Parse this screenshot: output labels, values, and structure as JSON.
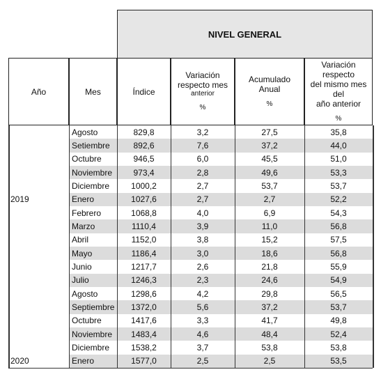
{
  "table": {
    "title": "NIVEL GENERAL",
    "headers": [
      {
        "lines": [
          "Año"
        ]
      },
      {
        "lines": [
          "Mes"
        ]
      },
      {
        "lines": [
          "Índice"
        ]
      },
      {
        "lines": [
          "Variación",
          "respecto mes"
        ],
        "sub": "anterior",
        "unit": "%"
      },
      {
        "lines": [
          "Acumulado",
          "Anual"
        ],
        "unit": "%"
      },
      {
        "lines": [
          "Variación respecto",
          "del mismo mes del",
          "año anterior"
        ],
        "unit": "%"
      }
    ],
    "rows": [
      [
        null,
        "Agosto",
        "829,8",
        "3,2",
        "27,5",
        "35,8"
      ],
      [
        null,
        "Setiembre",
        "892,6",
        "7,6",
        "37,2",
        "44,0"
      ],
      [
        null,
        "Octubre",
        "946,5",
        "6,0",
        "45,5",
        "51,0"
      ],
      [
        null,
        "Noviembre",
        "973,4",
        "2,8",
        "49,6",
        "53,3"
      ],
      [
        null,
        "Diciembre",
        "1000,2",
        "2,7",
        "53,7",
        "53,7"
      ],
      [
        "2019",
        "Enero",
        "1027,6",
        "2,7",
        "2,7",
        "52,2"
      ],
      [
        null,
        "Febrero",
        "1068,8",
        "4,0",
        "6,9",
        "54,3"
      ],
      [
        null,
        "Marzo",
        "1110,4",
        "3,9",
        "11,0",
        "56,8"
      ],
      [
        null,
        "Abril",
        "1152,0",
        "3,8",
        "15,2",
        "57,5"
      ],
      [
        null,
        "Mayo",
        "1186,4",
        "3,0",
        "18,6",
        "56,8"
      ],
      [
        null,
        "Junio",
        "1217,7",
        "2,6",
        "21,8",
        "55,9"
      ],
      [
        null,
        "Julio",
        "1246,3",
        "2,3",
        "24,6",
        "54,9"
      ],
      [
        null,
        "Agosto",
        "1298,6",
        "4,2",
        "29,8",
        "56,5"
      ],
      [
        null,
        "Septiembre",
        "1372,0",
        "5,6",
        "37,2",
        "53,7"
      ],
      [
        null,
        "Octubre",
        "1417,6",
        "3,3",
        "41,7",
        "49,8"
      ],
      [
        null,
        "Noviembre",
        "1483,4",
        "4,6",
        "48,4",
        "52,4"
      ],
      [
        null,
        "Diciembre",
        "1538,2",
        "3,7",
        "53,8",
        "53,8"
      ],
      [
        "2020",
        "Enero",
        "1577,0",
        "2,5",
        "2,5",
        "53,5"
      ]
    ]
  }
}
